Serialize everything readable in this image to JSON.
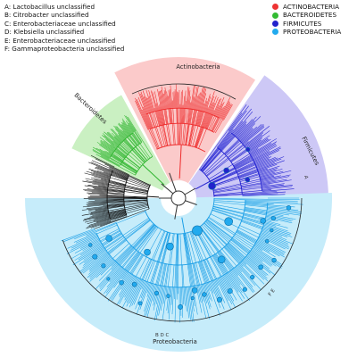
{
  "key_labels": [
    "A: Lactobacillus unclassified",
    "B: Citrobacter unclassified",
    "C: Enterobacteriaceae unclassified",
    "D: Klebsiella unclassified",
    "E: Enterobacteriaceae unclassified",
    "F: Gammaproteobacteria unclassified"
  ],
  "legend": [
    {
      "label": "ACTINOBACTERIA",
      "color": "#ee3333"
    },
    {
      "label": "BACTEROIDETES",
      "color": "#33bb33"
    },
    {
      "label": "FIRMICUTES",
      "color": "#2222cc"
    },
    {
      "label": "PROTEOBACTERIA",
      "color": "#22aaee"
    }
  ],
  "clades": [
    {
      "label": "Actinobacteria",
      "line_color": "#ee2b2b",
      "band_color": "#fbcaca"
    },
    {
      "label": "Bacteroidetes",
      "line_color": "#2fb52f",
      "band_color": "#caf0c2"
    },
    {
      "label": "Firmicutes",
      "line_color": "#1f1fd0",
      "band_color": "#cdc8f6"
    },
    {
      "label": "Proteobacteria",
      "line_color": "#1a9ee6",
      "band_color": "#c6ecfa"
    }
  ],
  "unclassified_color": "#111111",
  "markers": {
    "proteobacteria_letters": "F  E",
    "bottom_letters": "B D C",
    "firmicutes_letter": "A"
  }
}
